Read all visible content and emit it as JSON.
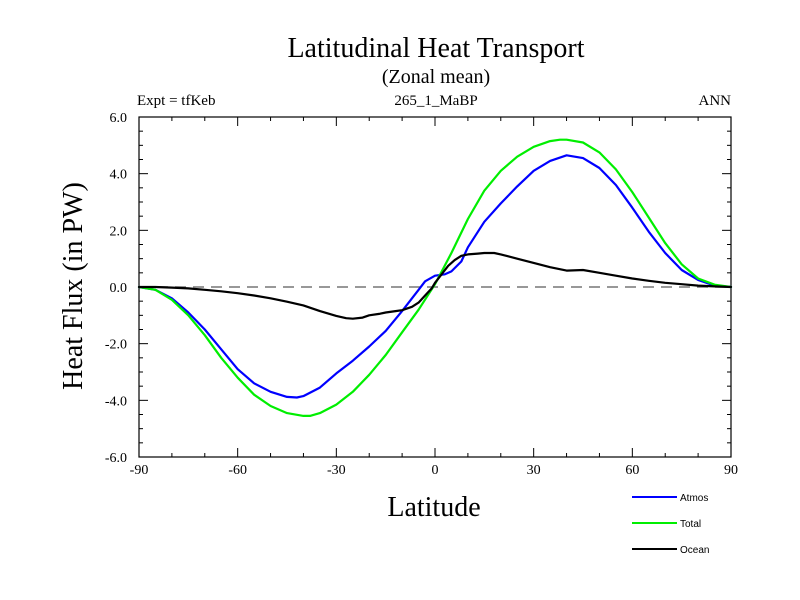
{
  "header": {
    "title": "Latitudinal Heat Transport",
    "subtitle": "(Zonal mean)",
    "left_label": "Expt = tfKeb",
    "center_label": "265_1_MaBP",
    "right_label": "ANN"
  },
  "chart_data": {
    "type": "line",
    "xlabel": "Latitude",
    "ylabel": "Heat Flux (in PW)",
    "xlim": [
      -90,
      90
    ],
    "ylim": [
      -6,
      6
    ],
    "xticks": [
      -90,
      -60,
      -30,
      0,
      30,
      60,
      90
    ],
    "xtick_labels": [
      "-90",
      "-60",
      "-30",
      "0",
      "30",
      "60",
      "90"
    ],
    "yticks": [
      -6,
      -4,
      -2,
      0,
      2,
      4,
      6
    ],
    "ytick_labels": [
      "-6.0",
      "-4.0",
      "-2.0",
      "0.0",
      "2.0",
      "4.0",
      "6.0"
    ],
    "zero_line": "dashed",
    "legend_position": "bottom-right",
    "series": [
      {
        "name": "Atmos",
        "color": "#0000ff",
        "x": [
          -90,
          -85,
          -80,
          -75,
          -70,
          -65,
          -60,
          -55,
          -50,
          -45,
          -42,
          -40,
          -35,
          -30,
          -25,
          -20,
          -15,
          -10,
          -7,
          -5,
          -3,
          0,
          3,
          5,
          8,
          10,
          15,
          20,
          25,
          30,
          35,
          40,
          45,
          50,
          55,
          60,
          65,
          70,
          75,
          80,
          85,
          90
        ],
        "y": [
          0,
          -0.1,
          -0.4,
          -0.9,
          -1.5,
          -2.2,
          -2.9,
          -3.4,
          -3.7,
          -3.88,
          -3.9,
          -3.85,
          -3.55,
          -3.05,
          -2.6,
          -2.1,
          -1.55,
          -0.85,
          -0.4,
          -0.1,
          0.2,
          0.4,
          0.45,
          0.55,
          0.9,
          1.4,
          2.3,
          2.95,
          3.55,
          4.1,
          4.45,
          4.65,
          4.55,
          4.2,
          3.6,
          2.8,
          1.95,
          1.2,
          0.6,
          0.25,
          0.05,
          0
        ]
      },
      {
        "name": "Total",
        "color": "#00ee00",
        "x": [
          -90,
          -85,
          -80,
          -75,
          -70,
          -65,
          -60,
          -55,
          -50,
          -45,
          -40,
          -38,
          -35,
          -30,
          -25,
          -20,
          -15,
          -10,
          -5,
          0,
          5,
          10,
          15,
          20,
          25,
          30,
          35,
          38,
          40,
          45,
          50,
          55,
          60,
          65,
          70,
          75,
          80,
          85,
          90
        ],
        "y": [
          0,
          -0.1,
          -0.45,
          -1.0,
          -1.7,
          -2.5,
          -3.2,
          -3.8,
          -4.2,
          -4.45,
          -4.55,
          -4.55,
          -4.45,
          -4.15,
          -3.7,
          -3.1,
          -2.4,
          -1.6,
          -0.8,
          0.1,
          1.2,
          2.4,
          3.4,
          4.1,
          4.6,
          4.95,
          5.15,
          5.2,
          5.2,
          5.1,
          4.75,
          4.15,
          3.35,
          2.45,
          1.55,
          0.8,
          0.3,
          0.08,
          0
        ]
      },
      {
        "name": "Ocean",
        "color": "#000000",
        "x": [
          -90,
          -85,
          -80,
          -75,
          -70,
          -65,
          -60,
          -55,
          -50,
          -45,
          -40,
          -35,
          -30,
          -27,
          -25,
          -22,
          -20,
          -17,
          -15,
          -12,
          -10,
          -7,
          -5,
          -3,
          -1,
          0,
          2,
          4,
          6,
          8,
          10,
          13,
          15,
          18,
          20,
          25,
          30,
          35,
          40,
          45,
          50,
          55,
          60,
          65,
          70,
          75,
          80,
          85,
          90
        ],
        "y": [
          0,
          0.0,
          -0.02,
          -0.05,
          -0.1,
          -0.15,
          -0.22,
          -0.3,
          -0.4,
          -0.52,
          -0.65,
          -0.85,
          -1.02,
          -1.1,
          -1.12,
          -1.08,
          -1.0,
          -0.95,
          -0.9,
          -0.85,
          -0.82,
          -0.7,
          -0.55,
          -0.3,
          -0.05,
          0.15,
          0.45,
          0.75,
          0.95,
          1.1,
          1.15,
          1.18,
          1.2,
          1.2,
          1.15,
          1.0,
          0.85,
          0.7,
          0.58,
          0.6,
          0.5,
          0.4,
          0.3,
          0.22,
          0.15,
          0.1,
          0.05,
          0.02,
          0
        ]
      }
    ]
  }
}
